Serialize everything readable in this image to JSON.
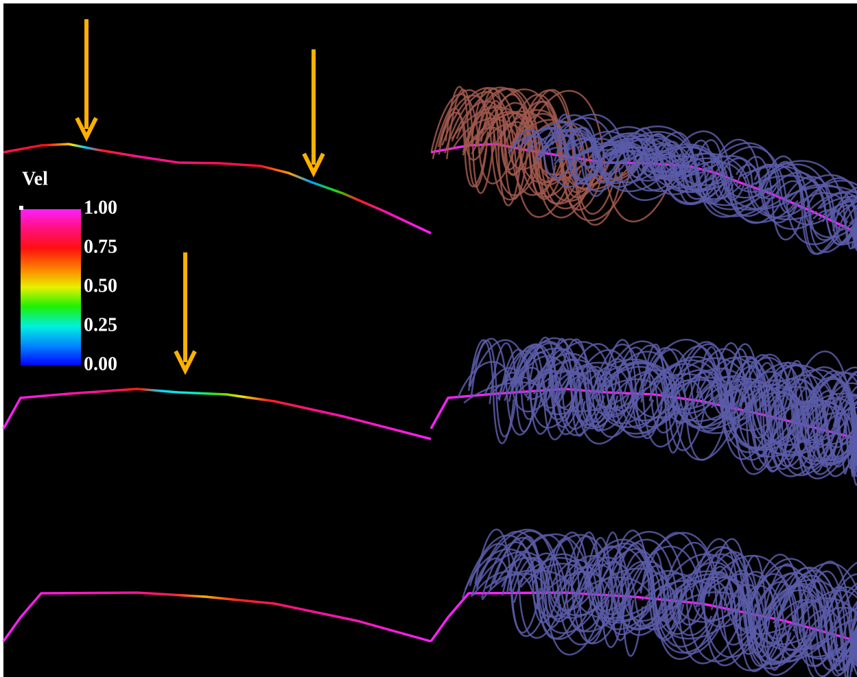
{
  "legend": {
    "title": "Vel",
    "ticks": [
      {
        "value": 1,
        "label": "1.00"
      },
      {
        "value": 0.75,
        "label": "0.75"
      },
      {
        "value": 0.5,
        "label": "0.50"
      },
      {
        "value": 0.25,
        "label": "0.25"
      },
      {
        "value": 0,
        "label": "0.00"
      }
    ]
  }
}
